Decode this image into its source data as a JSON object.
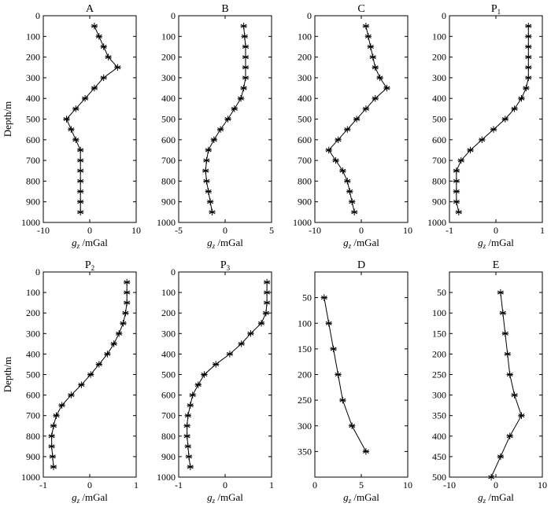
{
  "chart_data": [
    {
      "type": "line",
      "title": "A",
      "title_sub": "",
      "ylabel": "Depth/m",
      "xlabel_var": "g",
      "xlabel_sub": "z",
      "xlabel_unit": " /mGal",
      "xlim": [
        -10,
        10
      ],
      "xticks": [
        -10,
        0,
        10
      ],
      "ylim": [
        0,
        1000
      ],
      "yticks": [
        0,
        100,
        200,
        300,
        400,
        500,
        600,
        700,
        800,
        900,
        1000
      ],
      "x": [
        1,
        2,
        3,
        4,
        6,
        3,
        1,
        -1,
        -3,
        -5,
        -4,
        -3,
        -2,
        -2,
        -2,
        -2,
        -2,
        -2,
        -2
      ],
      "y": [
        50,
        100,
        150,
        200,
        250,
        300,
        350,
        400,
        450,
        500,
        550,
        600,
        650,
        700,
        750,
        800,
        850,
        900,
        950
      ]
    },
    {
      "type": "line",
      "title": "B",
      "title_sub": "",
      "ylabel": "",
      "xlabel_var": "g",
      "xlabel_sub": "z",
      "xlabel_unit": " /mGal",
      "xlim": [
        -5,
        5
      ],
      "xticks": [
        -5,
        0,
        5
      ],
      "ylim": [
        0,
        1000
      ],
      "yticks": [
        0,
        100,
        200,
        300,
        400,
        500,
        600,
        700,
        800,
        900,
        1000
      ],
      "x": [
        2.0,
        2.1,
        2.2,
        2.2,
        2.2,
        2.2,
        2.0,
        1.7,
        1.0,
        0.3,
        -0.5,
        -1.2,
        -1.8,
        -2.0,
        -2.1,
        -2.0,
        -1.8,
        -1.6,
        -1.4
      ],
      "y": [
        50,
        100,
        150,
        200,
        250,
        300,
        350,
        400,
        450,
        500,
        550,
        600,
        650,
        700,
        750,
        800,
        850,
        900,
        950
      ]
    },
    {
      "type": "line",
      "title": "C",
      "title_sub": "",
      "ylabel": "",
      "xlabel_var": "g",
      "xlabel_sub": "z",
      "xlabel_unit": " /mGal",
      "xlim": [
        -10,
        10
      ],
      "xticks": [
        -10,
        0,
        10
      ],
      "ylim": [
        0,
        1000
      ],
      "yticks": [
        0,
        100,
        200,
        300,
        400,
        500,
        600,
        700,
        800,
        900,
        1000
      ],
      "x": [
        1,
        1.5,
        2,
        2.5,
        3,
        4,
        5.5,
        3,
        1,
        -1,
        -3,
        -5,
        -7,
        -5.5,
        -4,
        -3,
        -2.5,
        -2,
        -1.5
      ],
      "y": [
        50,
        100,
        150,
        200,
        250,
        300,
        350,
        400,
        450,
        500,
        550,
        600,
        650,
        700,
        750,
        800,
        850,
        900,
        950
      ]
    },
    {
      "type": "line",
      "title": "P",
      "title_sub": "1",
      "ylabel": "",
      "xlabel_var": "g",
      "xlabel_sub": "z",
      "xlabel_unit": " /mGal",
      "xlim": [
        -1,
        1
      ],
      "xticks": [
        -1,
        0,
        1
      ],
      "ylim": [
        0,
        1000
      ],
      "yticks": [
        0,
        100,
        200,
        300,
        400,
        500,
        600,
        700,
        800,
        900,
        1000
      ],
      "x": [
        0.7,
        0.7,
        0.7,
        0.7,
        0.7,
        0.7,
        0.65,
        0.55,
        0.4,
        0.2,
        -0.05,
        -0.3,
        -0.55,
        -0.75,
        -0.85,
        -0.85,
        -0.85,
        -0.85,
        -0.8
      ],
      "y": [
        50,
        100,
        150,
        200,
        250,
        300,
        350,
        400,
        450,
        500,
        550,
        600,
        650,
        700,
        750,
        800,
        850,
        900,
        950
      ]
    },
    {
      "type": "line",
      "title": "P",
      "title_sub": "2",
      "ylabel": "Depth/m",
      "xlabel_var": "g",
      "xlabel_sub": "z",
      "xlabel_unit": " /mGal",
      "xlim": [
        -1,
        1
      ],
      "xticks": [
        -1,
        0,
        1
      ],
      "ylim": [
        0,
        1000
      ],
      "yticks": [
        0,
        100,
        200,
        300,
        400,
        500,
        600,
        700,
        800,
        900,
        1000
      ],
      "x": [
        0.8,
        0.8,
        0.8,
        0.77,
        0.72,
        0.63,
        0.52,
        0.38,
        0.2,
        0.02,
        -0.18,
        -0.4,
        -0.6,
        -0.72,
        -0.78,
        -0.82,
        -0.82,
        -0.8,
        -0.78
      ],
      "y": [
        50,
        100,
        150,
        200,
        250,
        300,
        350,
        400,
        450,
        500,
        550,
        600,
        650,
        700,
        750,
        800,
        850,
        900,
        950
      ]
    },
    {
      "type": "line",
      "title": "P",
      "title_sub": "3",
      "ylabel": "",
      "xlabel_var": "g",
      "xlabel_sub": "z",
      "xlabel_unit": " /mGal",
      "xlim": [
        -1,
        1
      ],
      "xticks": [
        -1,
        0,
        1
      ],
      "ylim": [
        0,
        1000
      ],
      "yticks": [
        0,
        100,
        200,
        300,
        400,
        500,
        600,
        700,
        800,
        900,
        1000
      ],
      "x": [
        0.9,
        0.9,
        0.9,
        0.88,
        0.78,
        0.55,
        0.35,
        0.1,
        -0.2,
        -0.45,
        -0.58,
        -0.7,
        -0.75,
        -0.8,
        -0.82,
        -0.82,
        -0.8,
        -0.78,
        -0.75
      ],
      "y": [
        50,
        100,
        150,
        200,
        250,
        300,
        350,
        400,
        450,
        500,
        550,
        600,
        650,
        700,
        750,
        800,
        850,
        900,
        950
      ]
    },
    {
      "type": "line",
      "title": "D",
      "title_sub": "",
      "ylabel": "",
      "xlabel_var": "g",
      "xlabel_sub": "z",
      "xlabel_unit": " /mGal",
      "xlim": [
        0,
        10
      ],
      "xticks": [
        0,
        5,
        10
      ],
      "ylim": [
        0,
        400
      ],
      "yticks": [
        50,
        100,
        150,
        200,
        250,
        300,
        350
      ],
      "x": [
        1,
        1.5,
        2,
        2.5,
        3,
        4,
        5.5
      ],
      "y": [
        50,
        100,
        150,
        200,
        250,
        300,
        350
      ]
    },
    {
      "type": "line",
      "title": "E",
      "title_sub": "",
      "ylabel": "",
      "xlabel_var": "g",
      "xlabel_sub": "z",
      "xlabel_unit": " /mGal",
      "xlim": [
        -10,
        10
      ],
      "xticks": [
        -10,
        0,
        10
      ],
      "ylim": [
        0,
        500
      ],
      "yticks": [
        50,
        100,
        150,
        200,
        250,
        300,
        350,
        400,
        450,
        500
      ],
      "x": [
        1,
        1.5,
        2,
        2.5,
        3,
        4,
        5.5,
        3,
        1,
        -1
      ],
      "y": [
        50,
        100,
        150,
        200,
        250,
        300,
        350,
        400,
        450,
        500
      ]
    }
  ]
}
